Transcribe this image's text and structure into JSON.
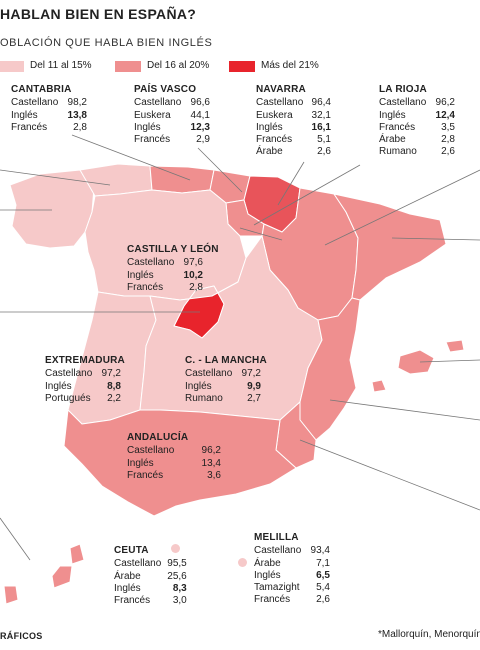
{
  "header": {
    "title": "HABLAN BIEN EN ESPAÑA?",
    "subtitle": "OBLACIÓN QUE HABLA BIEN INGLÉS"
  },
  "colors": {
    "light": "#f6c9c9",
    "mid": "#ef8f8f",
    "dark": "#e8242c",
    "background": "#ffffff"
  },
  "legend": [
    {
      "label": "Del 11 al 15%",
      "color": "#f6c9c9"
    },
    {
      "label": "Del 16 al 20%",
      "color": "#ef8f8f"
    },
    {
      "label": "Más del 21%",
      "color": "#e8242c"
    }
  ],
  "regions": {
    "cantabria": {
      "name": "CANTABRIA",
      "rows": [
        {
          "lang": "Castellano",
          "value": "98,2"
        },
        {
          "lang": "Inglés",
          "value": "13,8"
        },
        {
          "lang": "Francés",
          "value": "2,8"
        }
      ]
    },
    "pais_vasco": {
      "name": "PAÍS VASCO",
      "rows": [
        {
          "lang": "Castellano",
          "value": "96,6"
        },
        {
          "lang": "Euskera",
          "value": "44,1"
        },
        {
          "lang": "Inglés",
          "value": "12,3"
        },
        {
          "lang": "Francés",
          "value": "2,9"
        }
      ]
    },
    "navarra": {
      "name": "NAVARRA",
      "rows": [
        {
          "lang": "Castellano",
          "value": "96,4"
        },
        {
          "lang": "Euskera",
          "value": "32,1"
        },
        {
          "lang": "Inglés",
          "value": "16,1"
        },
        {
          "lang": "Francés",
          "value": "5,1"
        },
        {
          "lang": "Árabe",
          "value": "2,6"
        }
      ]
    },
    "la_rioja": {
      "name": "LA RIOJA",
      "rows": [
        {
          "lang": "Castellano",
          "value": "96,2"
        },
        {
          "lang": "Inglés",
          "value": "12,4"
        },
        {
          "lang": "Francés",
          "value": "3,5"
        },
        {
          "lang": "Árabe",
          "value": "2,8"
        },
        {
          "lang": "Rumano",
          "value": "2,6"
        }
      ]
    },
    "castilla_leon": {
      "name": "CASTILLA Y LEÓN",
      "rows": [
        {
          "lang": "Castellano",
          "value": "97,6"
        },
        {
          "lang": "Inglés",
          "value": "10,2"
        },
        {
          "lang": "Francés",
          "value": "2,8"
        }
      ]
    },
    "extremadura": {
      "name": "EXTREMADURA",
      "rows": [
        {
          "lang": "Castellano",
          "value": "97,2"
        },
        {
          "lang": "Inglés",
          "value": "8,8"
        },
        {
          "lang": "Portugués",
          "value": "2,2"
        }
      ]
    },
    "castilla_mancha": {
      "name": "C. - LA MANCHA",
      "rows": [
        {
          "lang": "Castellano",
          "value": "97,2"
        },
        {
          "lang": "Inglés",
          "value": "9,9"
        },
        {
          "lang": "Rumano",
          "value": "2,7"
        }
      ]
    },
    "andalucia": {
      "name": "ANDALUCÍA",
      "rows": [
        {
          "lang": "Castellano",
          "value": "96,2"
        },
        {
          "lang": "Inglés",
          "value": "13,4"
        },
        {
          "lang": "Francés",
          "value": "3,6"
        }
      ]
    },
    "ceuta": {
      "name": "CEUTA",
      "rows": [
        {
          "lang": "Castellano",
          "value": "95,5"
        },
        {
          "lang": "Árabe",
          "value": "25,6"
        },
        {
          "lang": "Inglés",
          "value": "8,3"
        },
        {
          "lang": "Francés",
          "value": "3,0"
        }
      ]
    },
    "melilla": {
      "name": "MELILLA",
      "rows": [
        {
          "lang": "Castellano",
          "value": "93,4"
        },
        {
          "lang": "Árabe",
          "value": "7,1"
        },
        {
          "lang": "Inglés",
          "value": "6,5"
        },
        {
          "lang": "Tamazight",
          "value": "5,4"
        },
        {
          "lang": "Francés",
          "value": "2,6"
        }
      ]
    }
  },
  "footer": {
    "source": "RÁFICOS",
    "note": "*Mallorquín, Menorquín,"
  }
}
